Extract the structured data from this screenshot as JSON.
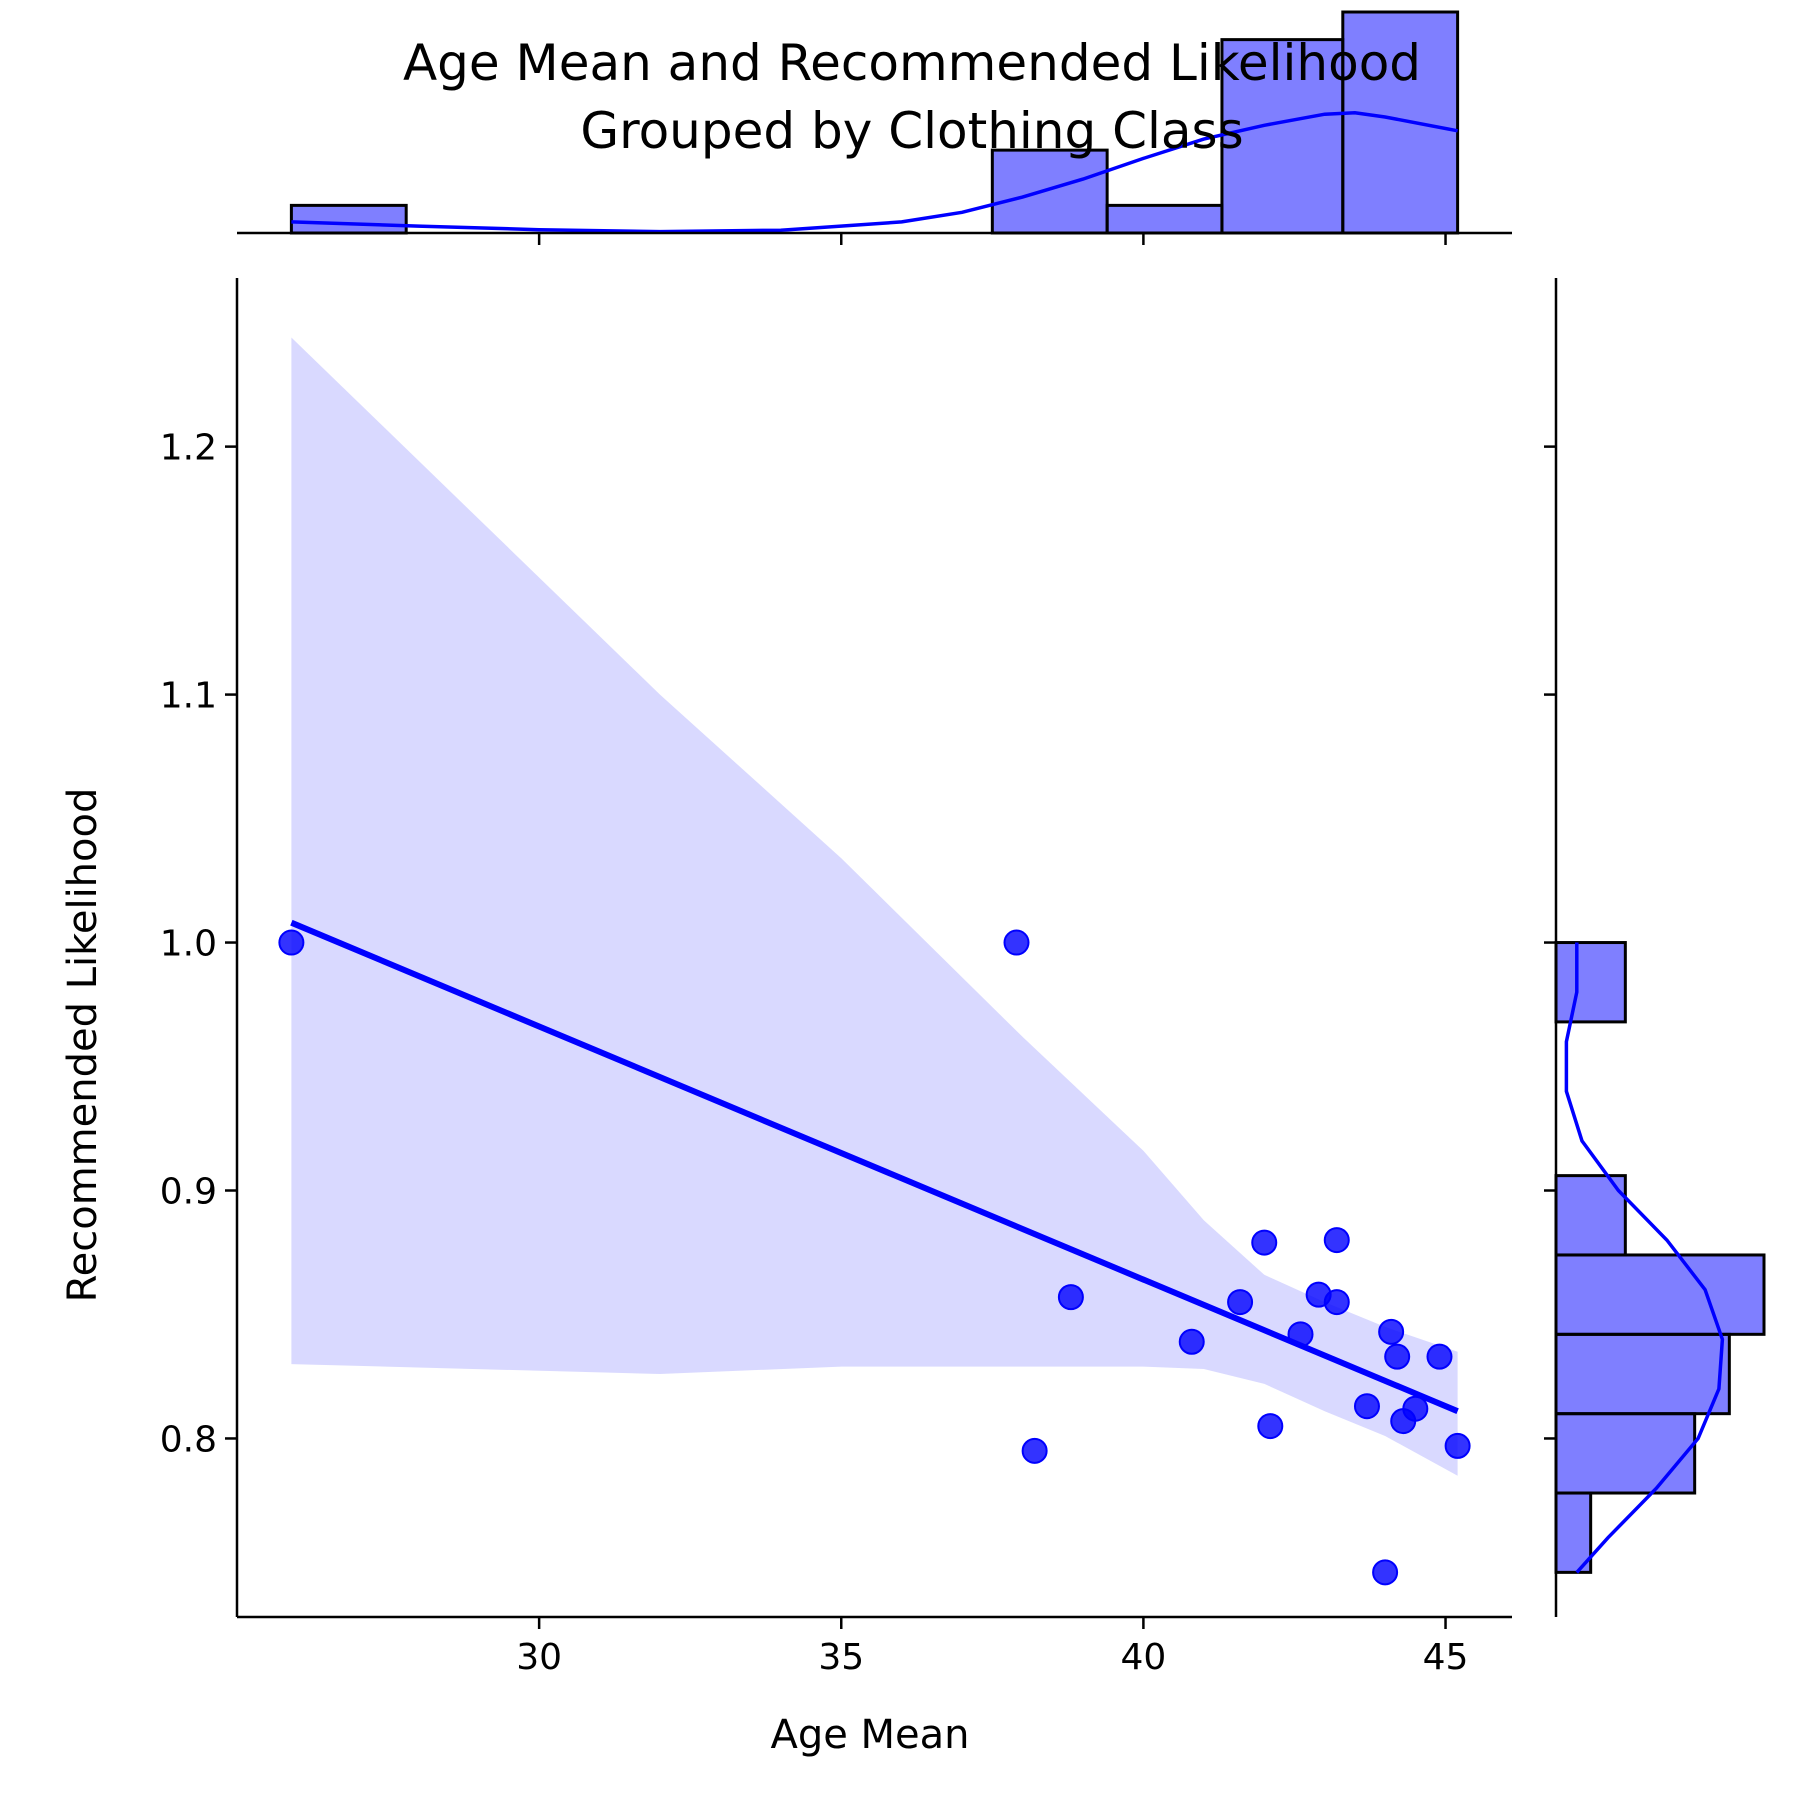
{
  "chart_data": {
    "type": "scatter",
    "title": [
      "Age Mean and Recommended Likelihood",
      "Grouped by Clothing Class"
    ],
    "xlabel": "Age Mean",
    "ylabel": "Recommended Likelihood",
    "xlim": [
      25.0,
      46.1
    ],
    "ylim": [
      0.728,
      1.268
    ],
    "xticks": [
      30,
      35,
      40,
      45
    ],
    "yticks": [
      0.8,
      0.9,
      1.0,
      1.1,
      1.2
    ],
    "xtick_labels": [
      "30",
      "35",
      "40",
      "45"
    ],
    "ytick_labels": [
      "0.8",
      "0.9",
      "1.0",
      "1.1",
      "1.2"
    ],
    "grid": false,
    "color": "#0000ff",
    "points": [
      {
        "x": 25.9,
        "y": 1.0
      },
      {
        "x": 37.9,
        "y": 1.0
      },
      {
        "x": 38.2,
        "y": 0.795
      },
      {
        "x": 38.8,
        "y": 0.857
      },
      {
        "x": 40.8,
        "y": 0.839
      },
      {
        "x": 41.6,
        "y": 0.855
      },
      {
        "x": 42.0,
        "y": 0.879
      },
      {
        "x": 42.1,
        "y": 0.805
      },
      {
        "x": 42.6,
        "y": 0.842
      },
      {
        "x": 42.9,
        "y": 0.858
      },
      {
        "x": 43.2,
        "y": 0.88
      },
      {
        "x": 43.2,
        "y": 0.855
      },
      {
        "x": 43.7,
        "y": 0.813
      },
      {
        "x": 44.0,
        "y": 0.746
      },
      {
        "x": 44.1,
        "y": 0.843
      },
      {
        "x": 44.2,
        "y": 0.833
      },
      {
        "x": 44.3,
        "y": 0.807
      },
      {
        "x": 44.5,
        "y": 0.812
      },
      {
        "x": 44.9,
        "y": 0.833
      },
      {
        "x": 45.2,
        "y": 0.797
      }
    ],
    "regression": {
      "x": [
        25.9,
        45.2
      ],
      "y": [
        1.008,
        0.811
      ]
    },
    "confidence_band": {
      "x": [
        25.9,
        32.0,
        35.0,
        38.0,
        40.0,
        41.0,
        42.0,
        43.0,
        44.0,
        45.2
      ],
      "upper": [
        1.244,
        1.1,
        1.034,
        0.962,
        0.916,
        0.888,
        0.866,
        0.855,
        0.845,
        0.835
      ],
      "lower": [
        0.83,
        0.826,
        0.829,
        0.829,
        0.829,
        0.828,
        0.822,
        0.811,
        0.801,
        0.785
      ]
    },
    "x_histogram": {
      "bins": [
        [
          25.9,
          27.8,
          1
        ],
        [
          37.5,
          39.4,
          3
        ],
        [
          39.4,
          41.3,
          1
        ],
        [
          41.3,
          43.3,
          7
        ],
        [
          43.3,
          45.2,
          8
        ]
      ],
      "kde": {
        "x": [
          25.9,
          28.0,
          30.0,
          32.0,
          34.0,
          36.0,
          37.0,
          38.0,
          39.0,
          40.0,
          41.0,
          42.0,
          43.0,
          43.5,
          44.0,
          45.2
        ],
        "density": [
          0.4,
          0.25,
          0.12,
          0.05,
          0.1,
          0.4,
          0.75,
          1.3,
          1.95,
          2.7,
          3.4,
          3.9,
          4.3,
          4.35,
          4.2,
          3.7
        ]
      }
    },
    "y_histogram": {
      "bins": [
        [
          0.746,
          0.778,
          1
        ],
        [
          0.778,
          0.81,
          4
        ],
        [
          0.81,
          0.842,
          5
        ],
        [
          0.842,
          0.874,
          6
        ],
        [
          0.874,
          0.906,
          2
        ],
        [
          0.968,
          1.0,
          2
        ]
      ],
      "kde": {
        "y": [
          0.746,
          0.76,
          0.78,
          0.8,
          0.82,
          0.84,
          0.86,
          0.88,
          0.9,
          0.92,
          0.94,
          0.96,
          0.97,
          0.98,
          1.0
        ],
        "density": [
          0.6,
          1.5,
          2.9,
          4.1,
          4.7,
          4.8,
          4.3,
          3.2,
          1.8,
          0.75,
          0.3,
          0.3,
          0.45,
          0.6,
          0.6
        ]
      }
    }
  }
}
